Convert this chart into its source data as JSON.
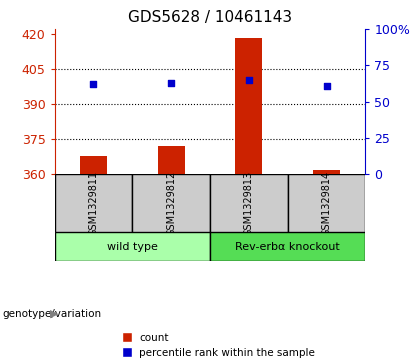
{
  "title": "GDS5628 / 10461143",
  "samples": [
    "GSM1329811",
    "GSM1329812",
    "GSM1329813",
    "GSM1329814"
  ],
  "counts": [
    368,
    372,
    418,
    362
  ],
  "percentiles": [
    62,
    63,
    65,
    61
  ],
  "ylim_left": [
    360,
    422
  ],
  "ylim_right": [
    0,
    100
  ],
  "yticks_left": [
    360,
    375,
    390,
    405,
    420
  ],
  "yticks_right": [
    0,
    25,
    50,
    75,
    100
  ],
  "bar_color": "#cc2200",
  "dot_color": "#0000cc",
  "bar_bottom": 360,
  "groups": [
    {
      "label": "wild type",
      "samples": [
        0,
        1
      ],
      "color": "#aaffaa"
    },
    {
      "label": "Rev-erbα knockout",
      "samples": [
        2,
        3
      ],
      "color": "#55dd55"
    }
  ],
  "legend_count_label": "count",
  "legend_pct_label": "percentile rank within the sample",
  "genotype_label": "genotype/variation",
  "title_fontsize": 11,
  "tick_fontsize": 9
}
